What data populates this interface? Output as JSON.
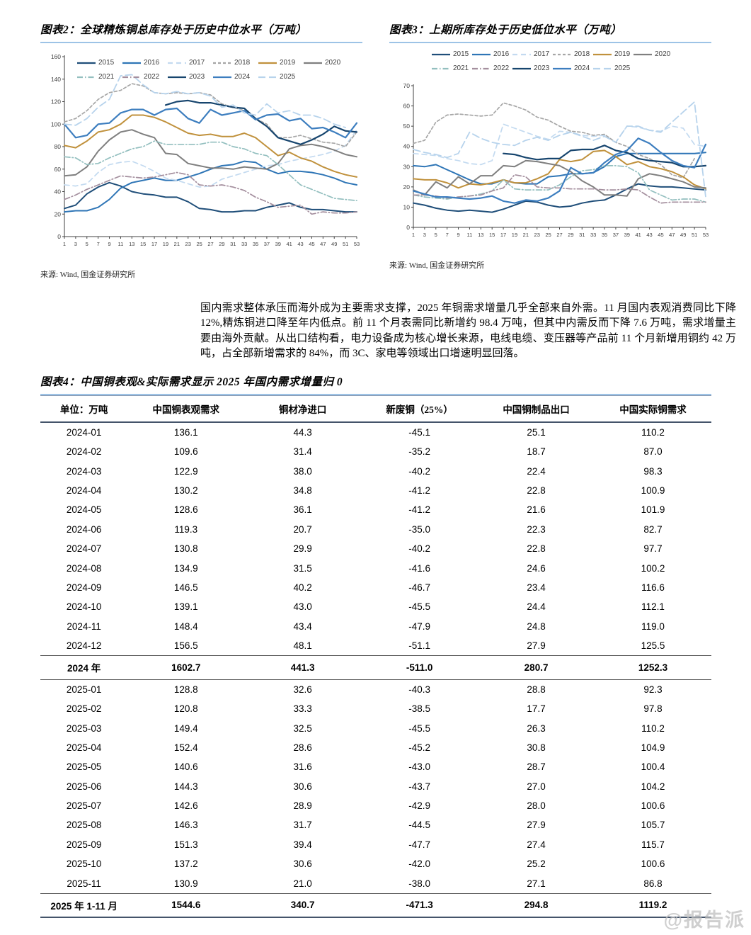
{
  "sources": {
    "fig2": "来源: Wind, 国金证券研究所",
    "fig3": "来源: Wind, 国金证券研究所"
  },
  "commentary": "国内需求整体承压而海外成为主要需求支撑，2025 年铜需求增量几乎全部来自外需。11 月国内表观消费同比下降 12%,精炼铜进口降至年内低点。前 11 个月表需同比新增约 98.4 万吨，但其中内需反而下降 7.6 万吨，需求增量主要由海外贡献。从出口结构看，电力设备成为核心增长来源，电线电缆、变压器等产品前 11 个月新增用铜约 42 万吨，占全部新增需求的 84%，而 3C、家电等领域出口增速明显回落。",
  "watermark": "@报告派",
  "table": {
    "title": "图表4：中国铜表观&实际需求显示 2025 年国内需求增量归 0",
    "columns": [
      "单位：万吨",
      "中国铜表观需求",
      "铜材净进口",
      "新废铜（25%）",
      "中国铜制品出口",
      "中国实际铜需求"
    ],
    "rows": [
      {
        "cells": [
          "2024-01",
          "136.1",
          "44.3",
          "-45.1",
          "25.1",
          "110.2"
        ],
        "emphasis": "none"
      },
      {
        "cells": [
          "2024-02",
          "109.6",
          "31.4",
          "-35.2",
          "18.7",
          "87.0"
        ],
        "emphasis": "none"
      },
      {
        "cells": [
          "2024-03",
          "122.9",
          "38.0",
          "-40.2",
          "22.4",
          "98.3"
        ],
        "emphasis": "none"
      },
      {
        "cells": [
          "2024-04",
          "130.2",
          "34.8",
          "-41.2",
          "22.8",
          "100.9"
        ],
        "emphasis": "none"
      },
      {
        "cells": [
          "2024-05",
          "128.6",
          "36.1",
          "-41.2",
          "21.6",
          "101.9"
        ],
        "emphasis": "none"
      },
      {
        "cells": [
          "2024-06",
          "119.3",
          "20.7",
          "-35.0",
          "22.3",
          "82.7"
        ],
        "emphasis": "none"
      },
      {
        "cells": [
          "2024-07",
          "130.8",
          "29.9",
          "-40.2",
          "22.8",
          "97.7"
        ],
        "emphasis": "none"
      },
      {
        "cells": [
          "2024-08",
          "134.9",
          "31.5",
          "-41.6",
          "24.6",
          "100.2"
        ],
        "emphasis": "none"
      },
      {
        "cells": [
          "2024-09",
          "146.5",
          "40.2",
          "-46.7",
          "23.4",
          "116.6"
        ],
        "emphasis": "none"
      },
      {
        "cells": [
          "2024-10",
          "139.1",
          "43.0",
          "-45.5",
          "24.4",
          "112.1"
        ],
        "emphasis": "none"
      },
      {
        "cells": [
          "2024-11",
          "148.4",
          "43.4",
          "-47.9",
          "24.8",
          "119.0"
        ],
        "emphasis": "none"
      },
      {
        "cells": [
          "2024-12",
          "156.5",
          "48.1",
          "-51.1",
          "27.9",
          "125.5"
        ],
        "emphasis": "none"
      },
      {
        "cells": [
          "2024 年",
          "1602.7",
          "441.3",
          "-511.0",
          "280.7",
          "1252.3"
        ],
        "emphasis": "sum"
      },
      {
        "cells": [
          "2025-01",
          "128.8",
          "32.6",
          "-40.3",
          "28.8",
          "92.3"
        ],
        "emphasis": "none"
      },
      {
        "cells": [
          "2025-02",
          "120.8",
          "33.3",
          "-38.5",
          "17.7",
          "97.8"
        ],
        "emphasis": "none"
      },
      {
        "cells": [
          "2025-03",
          "149.4",
          "32.5",
          "-45.5",
          "26.3",
          "110.2"
        ],
        "emphasis": "none"
      },
      {
        "cells": [
          "2025-04",
          "152.4",
          "28.6",
          "-45.2",
          "30.8",
          "104.9"
        ],
        "emphasis": "none"
      },
      {
        "cells": [
          "2025-05",
          "140.6",
          "31.6",
          "-43.0",
          "28.7",
          "100.4"
        ],
        "emphasis": "none"
      },
      {
        "cells": [
          "2025-06",
          "144.3",
          "30.6",
          "-43.7",
          "27.0",
          "104.2"
        ],
        "emphasis": "none"
      },
      {
        "cells": [
          "2025-07",
          "142.6",
          "28.9",
          "-42.9",
          "28.0",
          "100.6"
        ],
        "emphasis": "none"
      },
      {
        "cells": [
          "2025-08",
          "146.3",
          "31.7",
          "-44.5",
          "27.9",
          "105.7"
        ],
        "emphasis": "none"
      },
      {
        "cells": [
          "2025-09",
          "151.3",
          "39.4",
          "-47.7",
          "27.4",
          "115.7"
        ],
        "emphasis": "none"
      },
      {
        "cells": [
          "2025-10",
          "137.2",
          "30.6",
          "-42.0",
          "25.2",
          "100.6"
        ],
        "emphasis": "none"
      },
      {
        "cells": [
          "2025-11",
          "130.9",
          "21.0",
          "-38.0",
          "27.1",
          "86.8"
        ],
        "emphasis": "none"
      },
      {
        "cells": [
          "2025 年 1-11 月",
          "1544.6",
          "340.7",
          "-471.3",
          "294.8",
          "1119.2"
        ],
        "emphasis": "final"
      }
    ]
  },
  "chart_data": [
    {
      "type": "line",
      "title": "图表2：全球精炼铜总库存处于历史中位水平（万吨）",
      "xlabel": "",
      "ylabel": "",
      "ylim": [
        0,
        160
      ],
      "ystep": 20,
      "grid": false,
      "legend_position": "top-inside",
      "x": [
        1,
        3,
        5,
        7,
        9,
        11,
        13,
        15,
        17,
        19,
        21,
        23,
        25,
        27,
        29,
        31,
        33,
        35,
        37,
        39,
        41,
        43,
        45,
        47,
        49,
        51,
        53
      ],
      "series": [
        {
          "name": "2015",
          "color": "#1f4e79",
          "dash": "",
          "width": 2,
          "values": [
            25,
            28,
            38,
            44,
            48,
            45,
            40,
            38,
            37,
            35,
            35,
            31,
            25,
            24,
            22,
            22,
            23,
            23,
            26,
            28,
            30,
            26,
            24,
            24,
            23,
            22,
            22
          ]
        },
        {
          "name": "2016",
          "color": "#2e75b6",
          "dash": "",
          "width": 2,
          "values": [
            22,
            23,
            23,
            26,
            33,
            43,
            48,
            50,
            52,
            50,
            50,
            53,
            56,
            60,
            63,
            64,
            67,
            66,
            60,
            56,
            58,
            58,
            57,
            55,
            52,
            48,
            46
          ]
        },
        {
          "name": "2017",
          "color": "#c3daf0",
          "dash": "7 5",
          "width": 1.7,
          "values": [
            46,
            45,
            47,
            57,
            64,
            66,
            67,
            63,
            58,
            52,
            50,
            47,
            44,
            45,
            51,
            54,
            57,
            60,
            63,
            64,
            67,
            69,
            71,
            73,
            76,
            81,
            95
          ]
        },
        {
          "name": "2018",
          "color": "#a6a6a6",
          "dash": "4 3",
          "width": 1.7,
          "values": [
            102,
            105,
            112,
            122,
            128,
            130,
            136,
            134,
            128,
            127,
            128,
            127,
            128,
            126,
            118,
            115,
            112,
            105,
            100,
            88,
            88,
            90,
            87,
            84,
            83,
            80,
            93
          ]
        },
        {
          "name": "2019",
          "color": "#c0913c",
          "dash": "",
          "width": 2,
          "values": [
            81,
            79,
            85,
            93,
            95,
            100,
            108,
            108,
            106,
            102,
            97,
            92,
            90,
            91,
            89,
            89,
            92,
            88,
            80,
            72,
            75,
            70,
            67,
            62,
            58,
            55,
            53
          ]
        },
        {
          "name": "2020",
          "color": "#7f7f7f",
          "dash": "",
          "width": 2,
          "values": [
            54,
            55,
            62,
            76,
            86,
            93,
            95,
            91,
            88,
            74,
            73,
            65,
            63,
            61,
            61,
            60,
            62,
            61,
            60,
            65,
            78,
            81,
            82,
            80,
            77,
            73,
            71
          ]
        },
        {
          "name": "2021",
          "color": "#93bfbf",
          "dash": "8 3 1.5 3",
          "width": 1.7,
          "values": [
            71,
            70,
            64,
            65,
            70,
            74,
            78,
            80,
            85,
            82,
            82,
            82,
            82,
            84,
            84,
            80,
            78,
            74,
            72,
            64,
            55,
            46,
            42,
            38,
            34,
            33,
            32
          ]
        },
        {
          "name": "2022",
          "color": "#a48f9e",
          "dash": "8 3 1.5 3",
          "width": 1.7,
          "values": [
            33,
            37,
            42,
            46,
            50,
            54,
            53,
            52,
            53,
            55,
            57,
            55,
            46,
            45,
            46,
            44,
            41,
            35,
            31,
            26,
            27,
            28,
            20,
            22,
            21,
            21,
            22
          ]
        },
        {
          "name": "2023",
          "color": "#17456e",
          "dash": "",
          "width": 2.2,
          "values": [
            null,
            null,
            null,
            null,
            null,
            null,
            null,
            null,
            null,
            117,
            120,
            121,
            119,
            119,
            117,
            115,
            114,
            105,
            98,
            88,
            85,
            82,
            86,
            91,
            98,
            94,
            93
          ]
        },
        {
          "name": "2024",
          "color": "#3d7ebf",
          "dash": "",
          "width": 2.2,
          "values": [
            100,
            88,
            90,
            100,
            101,
            110,
            113,
            113,
            108,
            113,
            114,
            105,
            101,
            113,
            108,
            110,
            112,
            104,
            108,
            109,
            103,
            105,
            96,
            97,
            93,
            88,
            101
          ]
        },
        {
          "name": "2025",
          "color": "#b7d3ec",
          "dash": "10 5",
          "width": 1.8,
          "values": [
            100,
            99,
            105,
            115,
            122,
            143,
            144,
            135,
            128,
            127,
            129,
            127,
            128,
            125,
            115,
            117,
            110,
            108,
            118,
            110,
            112,
            108,
            108,
            105,
            100,
            97,
            null
          ]
        }
      ]
    },
    {
      "type": "line",
      "title": "图表3：上期所库存处于历史低位水平（万吨）",
      "xlabel": "",
      "ylabel": "",
      "ylim": [
        0,
        70
      ],
      "ystep": 10,
      "grid": false,
      "legend_position": "top-outside",
      "x": [
        1,
        3,
        5,
        7,
        9,
        11,
        13,
        15,
        17,
        19,
        21,
        23,
        25,
        27,
        29,
        31,
        33,
        35,
        37,
        39,
        41,
        43,
        45,
        47,
        49,
        51,
        53
      ],
      "series": [
        {
          "name": "2015",
          "color": "#1f4e79",
          "dash": "",
          "width": 2,
          "values": [
            12,
            11,
            9.5,
            8.5,
            8,
            8.5,
            8,
            7.5,
            9,
            11,
            13,
            12.5,
            11,
            10,
            10.5,
            12,
            13,
            13.5,
            16,
            19,
            21.5,
            20.5,
            20,
            20,
            19.5,
            19,
            18.5
          ]
        },
        {
          "name": "2016",
          "color": "#2e75b6",
          "dash": "",
          "width": 2,
          "values": [
            30.5,
            30,
            31,
            28.5,
            26,
            23.5,
            21.5,
            21.5,
            23.5,
            22,
            21.5,
            21.5,
            25,
            25.5,
            26.5,
            26.5,
            27,
            30,
            35,
            36.5,
            36.5,
            36.5,
            36.5,
            36.5,
            36.5,
            36.5,
            37
          ]
        },
        {
          "name": "2017",
          "color": "#c3daf0",
          "dash": "7 5",
          "width": 1.7,
          "values": [
            36.5,
            36,
            35.5,
            34,
            33,
            31.5,
            31,
            33,
            51,
            49,
            47,
            45,
            43.5,
            47.5,
            47,
            45.5,
            45,
            45.5,
            42,
            50,
            49.5,
            48,
            47.5,
            50,
            49,
            41,
            40
          ]
        },
        {
          "name": "2018",
          "color": "#a6a6a6",
          "dash": "4 3",
          "width": 1.7,
          "values": [
            41.5,
            43,
            52,
            55.5,
            56,
            55.5,
            55,
            55.5,
            61.5,
            60,
            58,
            54.5,
            53,
            50,
            47.5,
            47,
            45.5,
            46,
            42,
            40,
            36,
            34,
            31,
            26,
            24.5,
            34,
            null
          ]
        },
        {
          "name": "2019",
          "color": "#c0913c",
          "dash": "",
          "width": 2,
          "values": [
            24,
            23.5,
            23.5,
            22,
            19.5,
            21.5,
            21,
            22,
            23.5,
            22,
            22,
            24,
            26.5,
            33.5,
            32.5,
            33.5,
            37.5,
            38,
            35,
            31,
            32.5,
            30,
            29,
            27.5,
            25,
            21,
            19
          ]
        },
        {
          "name": "2020",
          "color": "#7f7f7f",
          "dash": "",
          "width": 2,
          "values": [
            18.5,
            16,
            22.5,
            19.5,
            25,
            21.5,
            25.5,
            25.5,
            30.5,
            30,
            33,
            32.5,
            31.5,
            30.5,
            27.5,
            23,
            20,
            16,
            16,
            15.5,
            24,
            26.5,
            25.5,
            24,
            22.5,
            20,
            19.5
          ]
        },
        {
          "name": "2021",
          "color": "#93bfbf",
          "dash": "8 3 1.5 3",
          "width": 1.7,
          "values": [
            16,
            15,
            14.5,
            14,
            15,
            15.5,
            16.5,
            18,
            23.5,
            19,
            18.5,
            18.5,
            18.5,
            21,
            25,
            28,
            28.5,
            30.5,
            30.5,
            30,
            27,
            18.5,
            16,
            13.5,
            14,
            14,
            12.5
          ]
        },
        {
          "name": "2022",
          "color": "#a48f9e",
          "dash": "8 3 1.5 3",
          "width": 1.7,
          "values": [
            16,
            16,
            15.5,
            14.5,
            15,
            15.5,
            16,
            18,
            19.5,
            26,
            25,
            20,
            19.5,
            19.5,
            19,
            19,
            19,
            18.5,
            18.5,
            19,
            18.5,
            15,
            12,
            12.5,
            12.5,
            12.5,
            12.5
          ]
        },
        {
          "name": "2023",
          "color": "#17456e",
          "dash": "",
          "width": 2.2,
          "values": [
            null,
            null,
            null,
            null,
            null,
            null,
            null,
            null,
            36.5,
            36,
            34.5,
            33.5,
            34,
            34,
            38,
            38.5,
            38.5,
            40.5,
            38,
            37,
            34,
            33,
            32.5,
            32,
            30,
            30,
            30.5
          ]
        },
        {
          "name": "2024",
          "color": "#3d7ebf",
          "dash": "",
          "width": 2.2,
          "values": [
            18,
            16.5,
            15,
            15,
            14.5,
            14,
            14.5,
            15.5,
            13,
            12,
            13.5,
            13,
            14.5,
            18,
            29.5,
            26.5,
            27,
            32,
            36,
            38,
            44,
            41.5,
            37,
            33,
            30.5,
            29.5,
            41
          ]
        },
        {
          "name": "2025",
          "color": "#b7d3ec",
          "dash": "10 5",
          "width": 1.8,
          "values": [
            38.5,
            37,
            36,
            34.5,
            36.5,
            47,
            44,
            42,
            41,
            40.5,
            43,
            44.5,
            43,
            45.5,
            47,
            45,
            43,
            45,
            42,
            50,
            50,
            48,
            47,
            52,
            57,
            62,
            15
          ]
        }
      ]
    }
  ]
}
